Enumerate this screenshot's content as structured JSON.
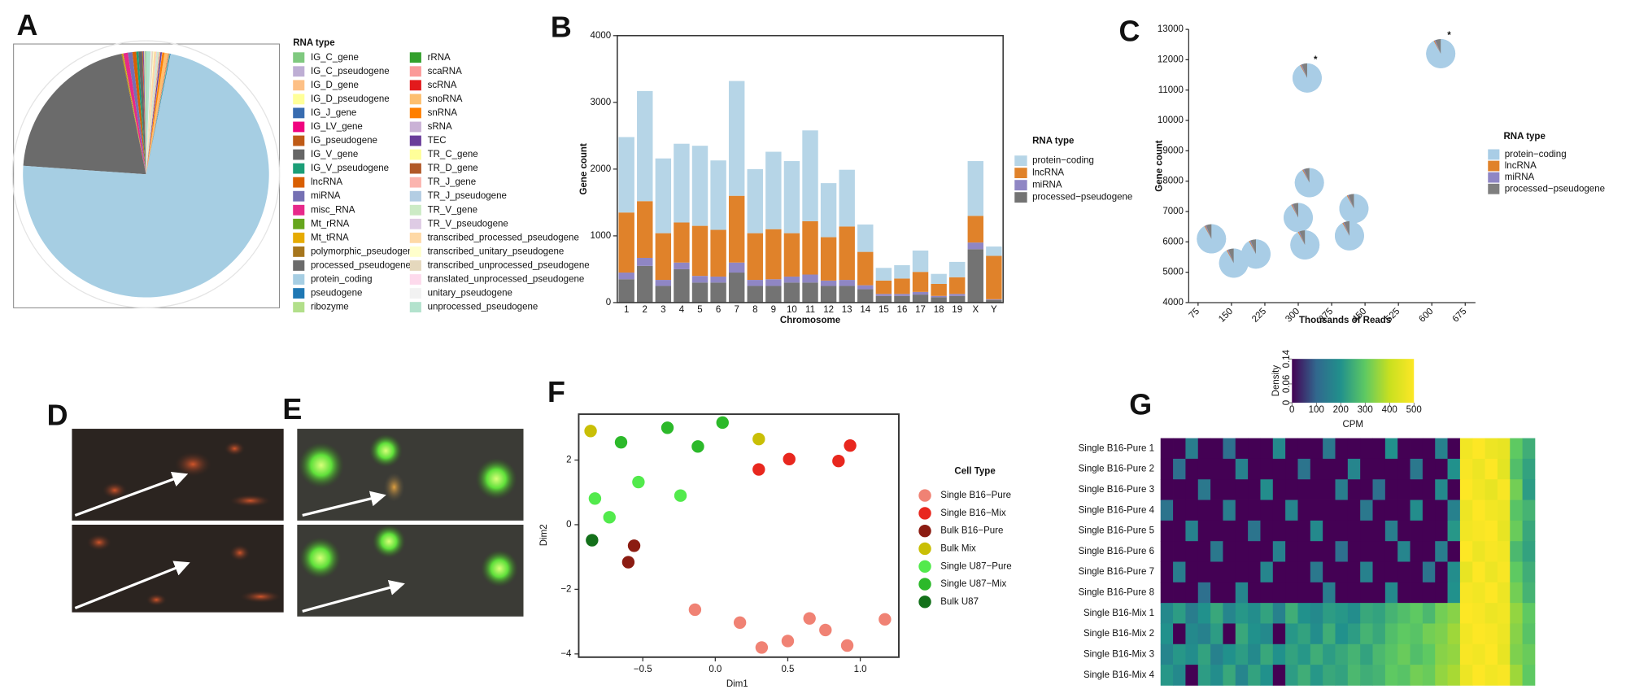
{
  "chart_data": [
    {
      "type": "pie",
      "label": "A",
      "legend_title": "RNA type",
      "categories": [
        "IG_C_gene",
        "IG_C_pseudogene",
        "IG_D_gene",
        "IG_D_pseudogene",
        "IG_J_gene",
        "IG_LV_gene",
        "IG_pseudogene",
        "IG_V_gene",
        "IG_V_pseudogene",
        "lncRNA",
        "miRNA",
        "misc_RNA",
        "Mt_rRNA",
        "Mt_tRNA",
        "polymorphic_pseudogene",
        "processed_pseudogene",
        "protein_coding",
        "pseudogene",
        "ribozyme",
        "rRNA",
        "scaRNA",
        "scRNA",
        "snoRNA",
        "snRNA",
        "sRNA",
        "TEC",
        "TR_C_gene",
        "TR_D_gene",
        "TR_J_gene",
        "TR_J_pseudogene",
        "TR_V_gene",
        "TR_V_pseudogene",
        "transcribed_processed_pseudogene",
        "transcribed_unitary_pseudogene",
        "transcribed_unprocessed_pseudogene",
        "translated_unprocessed_pseudogene",
        "unitary_pseudogene",
        "unprocessed_pseudogene"
      ],
      "values": [
        0.1,
        0.05,
        0.05,
        0.05,
        0.1,
        0.05,
        0.1,
        0.5,
        0.3,
        0.5,
        0.6,
        0.6,
        0.05,
        0.1,
        0.1,
        21,
        74,
        0.1,
        0.05,
        0.05,
        0.05,
        0.05,
        0.5,
        0.3,
        0.05,
        0.2,
        0.05,
        0.05,
        0.1,
        0.05,
        0.2,
        0.1,
        0.3,
        0.1,
        0.2,
        0.05,
        0.1,
        0.6
      ],
      "colors": [
        "#7fc97f",
        "#beaed4",
        "#fdc086",
        "#ffff99",
        "#386cb0",
        "#f0027f",
        "#bf5b17",
        "#666666",
        "#1b9e77",
        "#d95f02",
        "#7570b3",
        "#e7298a",
        "#66a61e",
        "#e6ab02",
        "#a6761d",
        "#6b6b6b",
        "#a6cee3",
        "#1f78b4",
        "#b2df8a",
        "#33a02c",
        "#fb9a99",
        "#e31a1c",
        "#fdbf6f",
        "#ff7f00",
        "#cab2d6",
        "#6a3d9a",
        "#ffff99",
        "#b15928",
        "#fbb4ae",
        "#b3cde3",
        "#ccebc5",
        "#decbe4",
        "#fed9a6",
        "#ffffcc",
        "#e5d8bd",
        "#fddaec",
        "#f2f2f2",
        "#b3e2cd"
      ]
    },
    {
      "type": "bar",
      "stacked": true,
      "label": "B",
      "xlabel": "Chromosome",
      "ylabel": "Gene count",
      "legend_title": "RNA type",
      "categories": [
        "1",
        "2",
        "3",
        "4",
        "5",
        "6",
        "7",
        "8",
        "9",
        "10",
        "11",
        "12",
        "13",
        "14",
        "15",
        "16",
        "17",
        "18",
        "19",
        "X",
        "Y"
      ],
      "ylim": [
        0,
        4000
      ],
      "yticks": [
        0,
        1000,
        2000,
        3000,
        4000
      ],
      "series": [
        {
          "name": "protein−coding",
          "color": "#b6d5e7",
          "values": [
            1130,
            1650,
            1120,
            1180,
            1200,
            1040,
            1720,
            960,
            1160,
            1080,
            1360,
            810,
            850,
            410,
            190,
            200,
            320,
            150,
            230,
            820,
            140
          ]
        },
        {
          "name": "lncRNA",
          "color": "#e0822a",
          "values": [
            900,
            850,
            700,
            600,
            750,
            700,
            1000,
            700,
            750,
            650,
            800,
            650,
            800,
            500,
            200,
            230,
            300,
            180,
            250,
            400,
            650
          ]
        },
        {
          "name": "miRNA",
          "color": "#8f86c4",
          "values": [
            100,
            120,
            90,
            100,
            100,
            90,
            150,
            90,
            100,
            90,
            120,
            80,
            90,
            60,
            30,
            30,
            40,
            20,
            30,
            100,
            10
          ]
        },
        {
          "name": "processed−pseudogene",
          "color": "#737373",
          "values": [
            350,
            550,
            250,
            500,
            300,
            300,
            450,
            250,
            250,
            300,
            300,
            250,
            250,
            200,
            100,
            100,
            120,
            80,
            100,
            800,
            40
          ]
        }
      ]
    },
    {
      "type": "scatter_pie",
      "label": "C",
      "xlabel": "Thousands of Reads",
      "ylabel": "Gene count",
      "legend_title": "RNA type",
      "xlim": [
        54,
        698
      ],
      "xticks": [
        75,
        150,
        225,
        300,
        375,
        450,
        525,
        600,
        675
      ],
      "ylim": [
        4000,
        13000
      ],
      "yticks": [
        4000,
        5000,
        6000,
        7000,
        8000,
        9000,
        10000,
        11000,
        12000,
        13000
      ],
      "x": [
        620,
        320,
        325,
        300,
        425,
        105,
        155,
        205,
        315,
        415
      ],
      "y": [
        12200,
        11400,
        7950,
        6800,
        7100,
        6100,
        5300,
        5600,
        5900,
        6200
      ],
      "pie_series": [
        {
          "name": "protein−coding",
          "color": "#a9cde6",
          "values": [
            92,
            92,
            92,
            92,
            92,
            92,
            92,
            92,
            92,
            92
          ]
        },
        {
          "name": "lncRNA",
          "color": "#e0822a",
          "values": [
            1,
            1,
            1,
            1,
            1,
            1,
            1,
            1,
            1,
            1
          ]
        },
        {
          "name": "miRNA",
          "color": "#8f86c4",
          "values": [
            1,
            1,
            1,
            1,
            1,
            1,
            1,
            1,
            1,
            1
          ]
        },
        {
          "name": "processed−pseudogene",
          "color": "#7f7f7f",
          "values": [
            6,
            6,
            6,
            6,
            6,
            6,
            6,
            6,
            6,
            6
          ]
        }
      ],
      "annotations": [
        {
          "text": "*",
          "x": 620,
          "y": 12200
        },
        {
          "text": "*",
          "x": 320,
          "y": 11400
        }
      ]
    },
    {
      "type": "scatter",
      "label": "F",
      "xlabel": "Dim1",
      "ylabel": "Dim2",
      "legend_title": "Cell Type",
      "xlim": [
        -0.942,
        1.266
      ],
      "xticks": [
        {
          "value": -0.5,
          "label": "−0.5"
        },
        {
          "value": 0,
          "label": "0.0"
        },
        {
          "value": 0.5,
          "label": "0.5"
        },
        {
          "value": 1,
          "label": "1.0"
        }
      ],
      "ylim": [
        -4.1,
        3.42
      ],
      "yticks": [
        {
          "value": 2,
          "label": "2"
        },
        {
          "value": 0,
          "label": "0"
        },
        {
          "value": -2,
          "label": "−2"
        },
        {
          "value": -4,
          "label": "−4"
        }
      ],
      "series": [
        {
          "name": "Single B16−Pure",
          "color": "#f08274",
          "x": [
            -0.14,
            0.17,
            0.32,
            0.5,
            0.65,
            0.76,
            0.91,
            1.17
          ],
          "y": [
            -2.63,
            -3.03,
            -3.8,
            -3.6,
            -2.9,
            -3.26,
            -3.74,
            -2.93
          ]
        },
        {
          "name": "Single B16−Mix",
          "color": "#e8271e",
          "x": [
            0.3,
            0.51,
            0.85,
            0.93
          ],
          "y": [
            1.71,
            2.03,
            1.97,
            2.45
          ]
        },
        {
          "name": "Bulk B16−Pure",
          "color": "#8b1c12",
          "x": [
            -0.56,
            -0.6
          ],
          "y": [
            -0.65,
            -1.16
          ]
        },
        {
          "name": "Bulk Mix",
          "color": "#c9bf06",
          "x": [
            -0.86,
            0.3
          ],
          "y": [
            2.9,
            2.65
          ]
        },
        {
          "name": "Single U87−Pure",
          "color": "#52ea4c",
          "x": [
            -0.83,
            -0.73,
            -0.53,
            -0.24
          ],
          "y": [
            0.81,
            0.23,
            1.32,
            0.9
          ]
        },
        {
          "name": "Single U87−Mix",
          "color": "#2cb92a",
          "x": [
            -0.65,
            -0.33,
            -0.12,
            0.05
          ],
          "y": [
            2.55,
            3.0,
            2.42,
            3.16
          ]
        },
        {
          "name": "Bulk U87",
          "color": "#13701a",
          "x": [
            -0.85
          ],
          "y": [
            -0.48
          ]
        }
      ]
    },
    {
      "type": "heatmap",
      "label": "G",
      "rows": [
        "Single B16-Pure 1",
        "Single B16-Pure 2",
        "Single B16-Pure 3",
        "Single B16-Pure 4",
        "Single B16-Pure 5",
        "Single B16-Pure 6",
        "Single B16-Pure 7",
        "Single B16-Pure 8",
        "Single B16-Mix 1",
        "Single B16-Mix 2",
        "Single B16-Mix 3",
        "Single B16-Mix 4"
      ],
      "colormap": [
        "#440154",
        "#31688e",
        "#21918c",
        "#5ec962",
        "#c8e020",
        "#fde725"
      ],
      "colorbar": {
        "xlabel": "CPM",
        "ylabel": "Density",
        "xlim": [
          0,
          500
        ],
        "xticks": [
          0,
          100,
          200,
          300,
          400,
          500
        ],
        "ylim": [
          0,
          0.14
        ],
        "yticks": [
          0,
          0.06,
          0.14
        ]
      },
      "values": [
        [
          0,
          0,
          150,
          0,
          0,
          120,
          0,
          0,
          0,
          180,
          0,
          0,
          0,
          140,
          0,
          0,
          0,
          0,
          200,
          0,
          0,
          0,
          160,
          0,
          480,
          500,
          470,
          460,
          300,
          250
        ],
        [
          0,
          120,
          0,
          0,
          0,
          0,
          160,
          0,
          0,
          0,
          0,
          130,
          0,
          0,
          0,
          170,
          0,
          0,
          0,
          0,
          140,
          0,
          0,
          200,
          490,
          470,
          500,
          450,
          280,
          230
        ],
        [
          0,
          0,
          0,
          140,
          0,
          0,
          0,
          0,
          190,
          0,
          0,
          0,
          0,
          0,
          150,
          0,
          0,
          120,
          0,
          0,
          0,
          0,
          180,
          0,
          500,
          480,
          460,
          490,
          320,
          220
        ],
        [
          130,
          0,
          0,
          0,
          0,
          150,
          0,
          0,
          0,
          0,
          170,
          0,
          0,
          0,
          0,
          0,
          140,
          0,
          0,
          0,
          190,
          0,
          0,
          160,
          470,
          500,
          480,
          470,
          290,
          260
        ],
        [
          0,
          0,
          160,
          0,
          0,
          0,
          0,
          130,
          0,
          0,
          0,
          0,
          180,
          0,
          0,
          0,
          0,
          0,
          150,
          0,
          0,
          0,
          0,
          210,
          480,
          490,
          500,
          460,
          310,
          240
        ],
        [
          0,
          0,
          0,
          0,
          140,
          0,
          0,
          0,
          0,
          160,
          0,
          0,
          0,
          0,
          120,
          0,
          0,
          0,
          0,
          170,
          0,
          0,
          150,
          0,
          500,
          470,
          490,
          480,
          270,
          230
        ],
        [
          0,
          150,
          0,
          0,
          0,
          0,
          0,
          0,
          170,
          0,
          0,
          0,
          140,
          0,
          0,
          0,
          160,
          0,
          0,
          0,
          0,
          130,
          0,
          190,
          460,
          500,
          470,
          490,
          300,
          250
        ],
        [
          0,
          0,
          0,
          120,
          0,
          0,
          170,
          0,
          0,
          0,
          0,
          0,
          0,
          150,
          0,
          0,
          0,
          0,
          180,
          0,
          0,
          0,
          0,
          200,
          490,
          480,
          500,
          470,
          320,
          260
        ],
        [
          180,
          220,
          150,
          200,
          240,
          170,
          210,
          190,
          230,
          160,
          250,
          200,
          180,
          220,
          210,
          190,
          240,
          230,
          260,
          280,
          300,
          270,
          320,
          340,
          500,
          490,
          470,
          480,
          350,
          300
        ],
        [
          200,
          0,
          180,
          160,
          220,
          0,
          240,
          200,
          180,
          0,
          210,
          230,
          190,
          250,
          200,
          220,
          260,
          240,
          280,
          300,
          290,
          320,
          330,
          360,
          480,
          500,
          490,
          470,
          340,
          290
        ],
        [
          170,
          210,
          190,
          230,
          160,
          200,
          220,
          180,
          240,
          200,
          230,
          210,
          250,
          220,
          240,
          260,
          230,
          270,
          290,
          310,
          280,
          300,
          340,
          350,
          490,
          480,
          500,
          460,
          330,
          310
        ],
        [
          210,
          180,
          0,
          220,
          190,
          240,
          170,
          230,
          200,
          0,
          220,
          250,
          210,
          240,
          230,
          270,
          250,
          260,
          300,
          290,
          320,
          310,
          350,
          370,
          470,
          500,
          480,
          490,
          360,
          300
        ]
      ]
    }
  ],
  "images": [
    {
      "label": "D"
    },
    {
      "label": "E"
    }
  ]
}
